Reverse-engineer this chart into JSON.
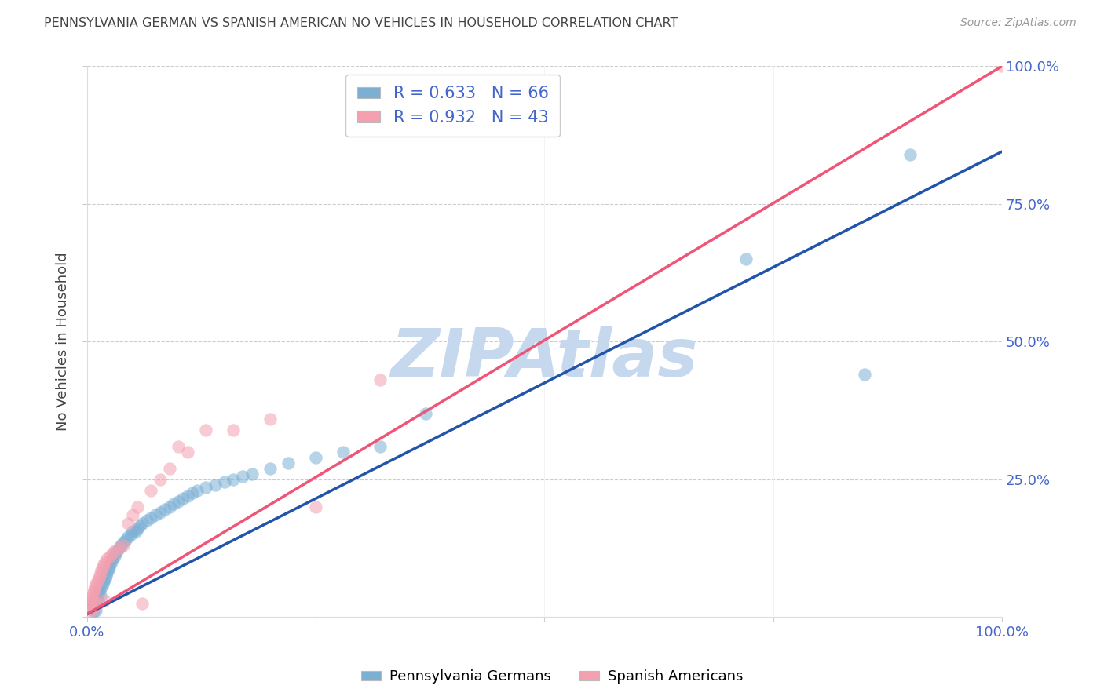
{
  "title": "PENNSYLVANIA GERMAN VS SPANISH AMERICAN NO VEHICLES IN HOUSEHOLD CORRELATION CHART",
  "source": "Source: ZipAtlas.com",
  "ylabel": "No Vehicles in Household",
  "xlim": [
    0,
    1
  ],
  "ylim": [
    0,
    1
  ],
  "xticks": [
    0.0,
    0.25,
    0.5,
    0.75,
    1.0
  ],
  "yticks": [
    0.0,
    0.25,
    0.5,
    0.75,
    1.0
  ],
  "xtick_labels": [
    "0.0%",
    "",
    "",
    "",
    "100.0%"
  ],
  "ytick_labels_right": [
    "",
    "25.0%",
    "50.0%",
    "75.0%",
    "100.0%"
  ],
  "blue_color": "#7BAFD4",
  "pink_color": "#F4A0B0",
  "blue_line_color": "#2255AA",
  "pink_line_color": "#EE5577",
  "blue_R": 0.633,
  "blue_N": 66,
  "pink_R": 0.932,
  "pink_N": 43,
  "watermark_text": "ZIPAtlas",
  "watermark_color": "#C5D8EE",
  "legend_label_blue": "Pennsylvania Germans",
  "legend_label_pink": "Spanish Americans",
  "background_color": "#FFFFFF",
  "grid_color": "#CCCCCC",
  "title_color": "#444444",
  "axis_label_color": "#444444",
  "tick_color": "#4466CC",
  "blue_scatter_x": [
    0.003,
    0.004,
    0.005,
    0.006,
    0.007,
    0.008,
    0.009,
    0.01,
    0.01,
    0.011,
    0.012,
    0.013,
    0.014,
    0.015,
    0.016,
    0.017,
    0.018,
    0.02,
    0.021,
    0.022,
    0.023,
    0.024,
    0.025,
    0.027,
    0.028,
    0.03,
    0.031,
    0.033,
    0.035,
    0.037,
    0.04,
    0.042,
    0.045,
    0.048,
    0.05,
    0.053,
    0.055,
    0.058,
    0.06,
    0.065,
    0.07,
    0.075,
    0.08,
    0.085,
    0.09,
    0.095,
    0.1,
    0.105,
    0.11,
    0.115,
    0.12,
    0.13,
    0.14,
    0.15,
    0.16,
    0.17,
    0.18,
    0.2,
    0.22,
    0.25,
    0.28,
    0.32,
    0.37,
    0.72,
    0.85,
    0.9
  ],
  "blue_scatter_y": [
    0.02,
    0.015,
    0.018,
    0.022,
    0.01,
    0.025,
    0.03,
    0.035,
    0.012,
    0.04,
    0.028,
    0.045,
    0.05,
    0.038,
    0.055,
    0.06,
    0.065,
    0.07,
    0.075,
    0.08,
    0.085,
    0.09,
    0.095,
    0.1,
    0.105,
    0.11,
    0.115,
    0.12,
    0.125,
    0.13,
    0.135,
    0.14,
    0.145,
    0.15,
    0.155,
    0.155,
    0.16,
    0.165,
    0.17,
    0.175,
    0.18,
    0.185,
    0.19,
    0.195,
    0.2,
    0.205,
    0.21,
    0.215,
    0.22,
    0.225,
    0.23,
    0.235,
    0.24,
    0.245,
    0.25,
    0.255,
    0.26,
    0.27,
    0.28,
    0.29,
    0.3,
    0.31,
    0.37,
    0.65,
    0.44,
    0.84
  ],
  "pink_scatter_x": [
    0.002,
    0.003,
    0.004,
    0.005,
    0.005,
    0.006,
    0.006,
    0.007,
    0.008,
    0.009,
    0.01,
    0.01,
    0.011,
    0.012,
    0.013,
    0.014,
    0.015,
    0.016,
    0.017,
    0.018,
    0.019,
    0.02,
    0.022,
    0.025,
    0.028,
    0.03,
    0.035,
    0.04,
    0.045,
    0.05,
    0.055,
    0.06,
    0.07,
    0.08,
    0.09,
    0.1,
    0.11,
    0.13,
    0.16,
    0.2,
    0.25,
    0.32,
    1.0
  ],
  "pink_scatter_y": [
    0.02,
    0.025,
    0.01,
    0.03,
    0.035,
    0.015,
    0.04,
    0.045,
    0.05,
    0.055,
    0.02,
    0.06,
    0.065,
    0.025,
    0.07,
    0.075,
    0.08,
    0.085,
    0.09,
    0.095,
    0.03,
    0.1,
    0.105,
    0.11,
    0.115,
    0.12,
    0.125,
    0.13,
    0.17,
    0.185,
    0.2,
    0.025,
    0.23,
    0.25,
    0.27,
    0.31,
    0.3,
    0.34,
    0.34,
    0.36,
    0.2,
    0.43,
    1.0
  ],
  "blue_line_x0": 0.0,
  "blue_line_x1": 1.0,
  "blue_line_y0": 0.005,
  "blue_line_y1": 0.845,
  "pink_line_x0": 0.0,
  "pink_line_x1": 1.0,
  "pink_line_y0": 0.005,
  "pink_line_y1": 1.0
}
